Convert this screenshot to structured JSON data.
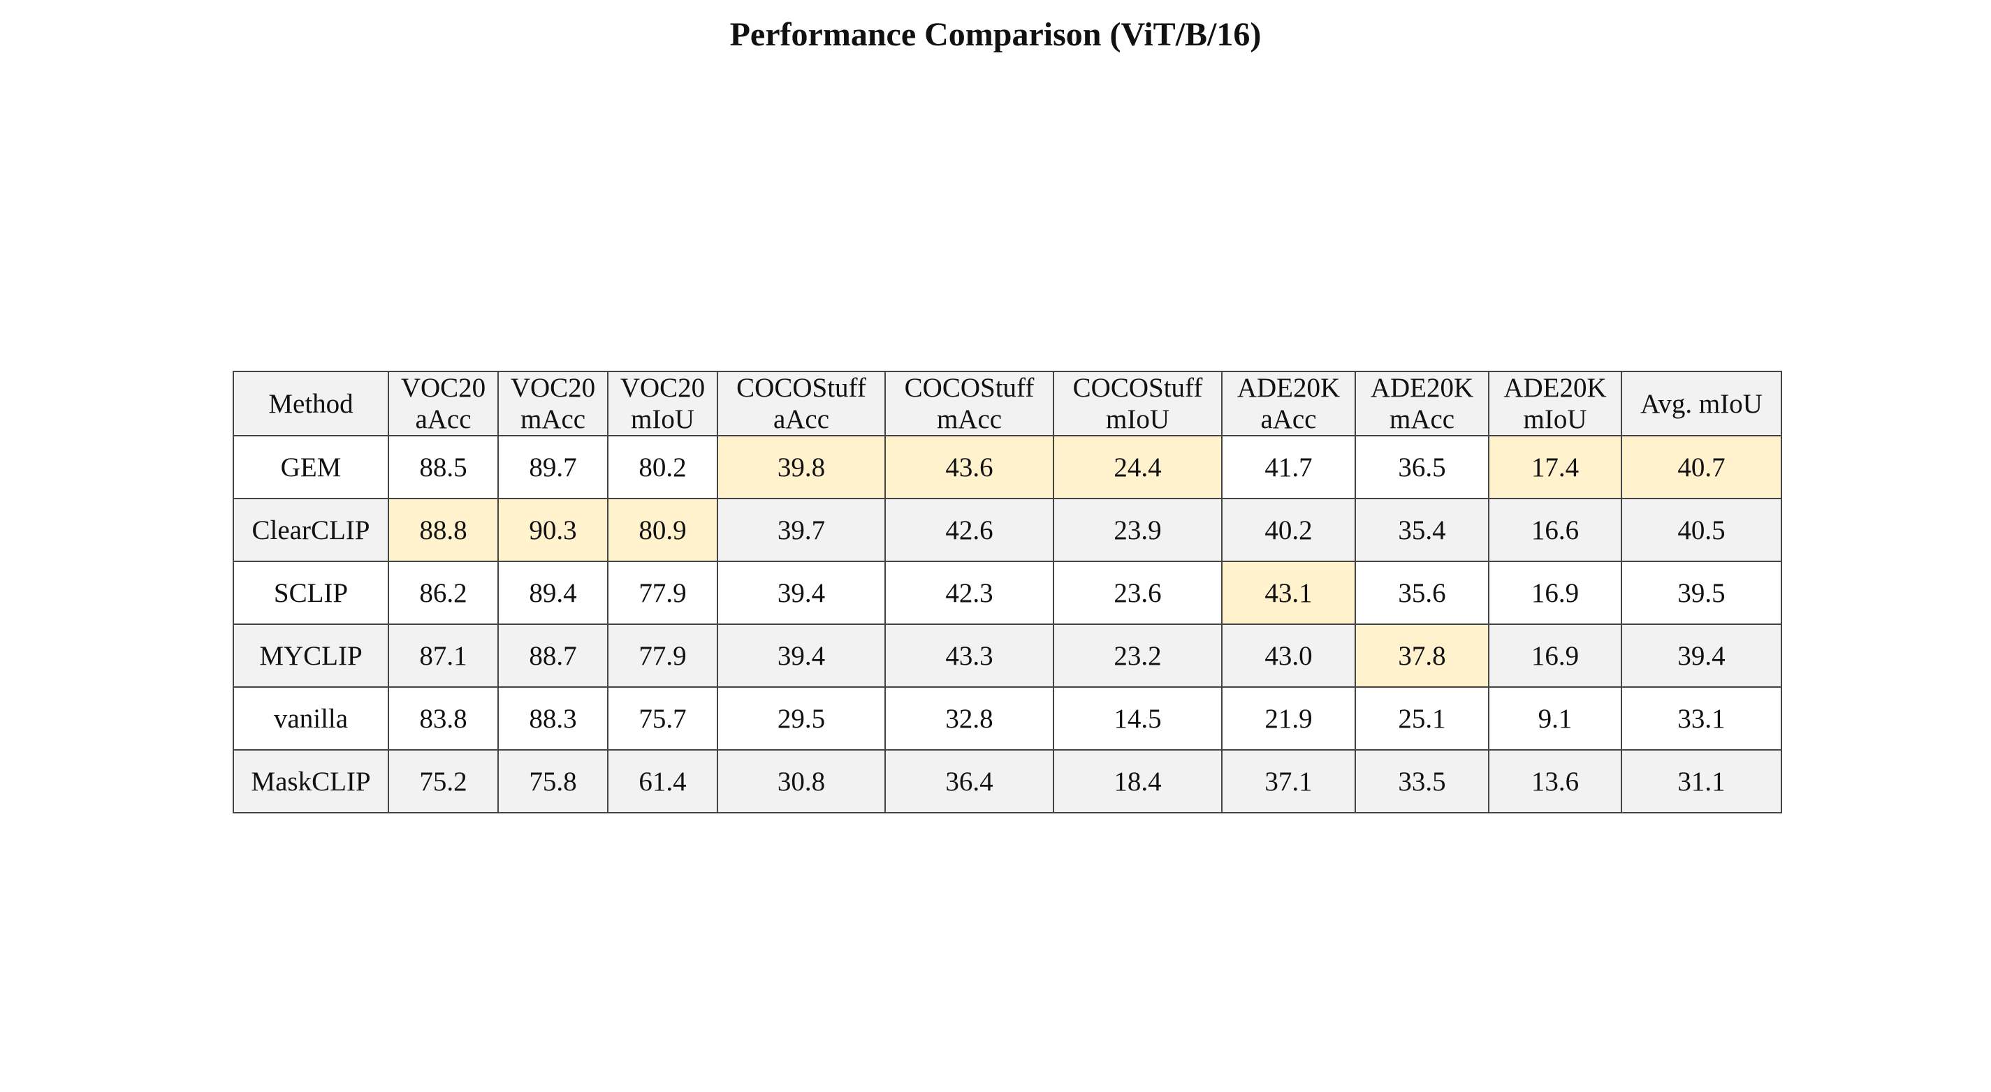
{
  "chart_data": {
    "type": "table",
    "title": "Performance Comparison (ViT/B/16)",
    "columns": [
      [
        "Method"
      ],
      [
        "VOC20",
        "aAcc"
      ],
      [
        "VOC20",
        "mAcc"
      ],
      [
        "VOC20",
        "mIoU"
      ],
      [
        "COCOStuff",
        "aAcc"
      ],
      [
        "COCOStuff",
        "mAcc"
      ],
      [
        "COCOStuff",
        "mIoU"
      ],
      [
        "ADE20K",
        "aAcc"
      ],
      [
        "ADE20K",
        "mAcc"
      ],
      [
        "ADE20K",
        "mIoU"
      ],
      [
        "Avg. mIoU"
      ]
    ],
    "rows": [
      [
        "GEM",
        "88.5",
        "89.7",
        "80.2",
        "39.8",
        "43.6",
        "24.4",
        "41.7",
        "36.5",
        "17.4",
        "40.7"
      ],
      [
        "ClearCLIP",
        "88.8",
        "90.3",
        "80.9",
        "39.7",
        "42.6",
        "23.9",
        "40.2",
        "35.4",
        "16.6",
        "40.5"
      ],
      [
        "SCLIP",
        "86.2",
        "89.4",
        "77.9",
        "39.4",
        "42.3",
        "23.6",
        "43.1",
        "35.6",
        "16.9",
        "39.5"
      ],
      [
        "MYCLIP",
        "87.1",
        "88.7",
        "77.9",
        "39.4",
        "43.3",
        "23.2",
        "43.0",
        "37.8",
        "16.9",
        "39.4"
      ],
      [
        "vanilla",
        "83.8",
        "88.3",
        "75.7",
        "29.5",
        "32.8",
        "14.5",
        "21.9",
        "25.1",
        "9.1",
        "33.1"
      ],
      [
        "MaskCLIP",
        "75.2",
        "75.8",
        "61.4",
        "30.8",
        "36.4",
        "18.4",
        "37.1",
        "33.5",
        "13.6",
        "31.1"
      ]
    ],
    "best_per_column": [
      {
        "column": 1,
        "row": 1
      },
      {
        "column": 2,
        "row": 1
      },
      {
        "column": 3,
        "row": 1
      },
      {
        "column": 4,
        "row": 0
      },
      {
        "column": 5,
        "row": 0
      },
      {
        "column": 6,
        "row": 0
      },
      {
        "column": 7,
        "row": 2
      },
      {
        "column": 8,
        "row": 3
      },
      {
        "column": 9,
        "row": 0
      },
      {
        "column": 10,
        "row": 0
      }
    ],
    "colors": {
      "highlight": "#fff2cc",
      "header_bg": "#f2f2f2",
      "stripe_bg": "#f2f2f2",
      "border": "#444444"
    }
  }
}
